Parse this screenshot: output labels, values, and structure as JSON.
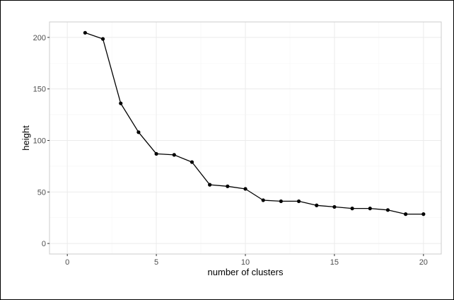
{
  "chart_data": {
    "type": "line",
    "title": "",
    "xlabel": "number of clusters",
    "ylabel": "height",
    "xlim": [
      -1,
      21
    ],
    "ylim": [
      -10.2,
      215
    ],
    "xticks": [
      "0",
      "5",
      "10",
      "15",
      "20"
    ],
    "yticks": [
      "0",
      "50",
      "100",
      "150",
      "200"
    ],
    "grid": true,
    "legend": "none",
    "series": [
      {
        "x": [
          1,
          2,
          3,
          4,
          5,
          6,
          7,
          8,
          9,
          10,
          11,
          12,
          13,
          14,
          15,
          16,
          17,
          18,
          19,
          20
        ],
        "y": [
          204.5,
          198.5,
          136,
          108,
          87,
          86,
          79,
          57,
          55.5,
          53,
          42,
          41,
          41,
          37,
          35.5,
          34,
          34,
          32.5,
          28.5,
          28.5
        ]
      }
    ],
    "colors": {
      "line": "#000000",
      "point": "#000000",
      "grid_major": "#ebebeb",
      "grid_minor": "#f5f5f5",
      "panel_border": "#cccccc",
      "tick_label": "#4d4d4d"
    }
  }
}
